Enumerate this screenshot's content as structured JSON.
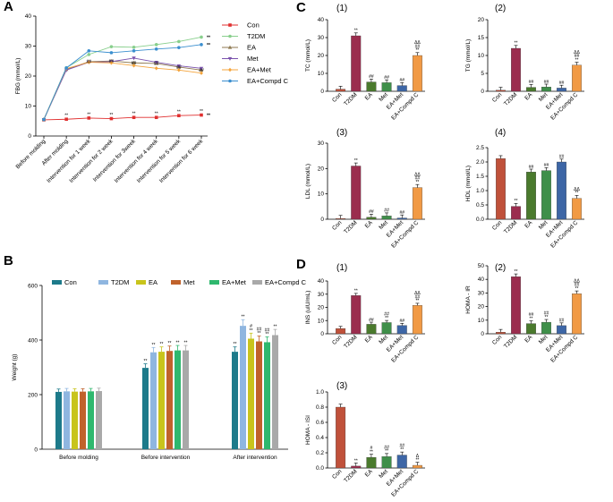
{
  "colors": {
    "con": "#e02f2f",
    "t2dm": "#88cf8c",
    "ea": "#8f7a52",
    "met": "#7a52ad",
    "eamet": "#f4a43c",
    "eacompd": "#3b8fcf",
    "barB": [
      "#1d7a8a",
      "#8fb6e0",
      "#c8c41c",
      "#c0622b",
      "#2fb86e",
      "#a9a9a9"
    ],
    "barC": [
      "#c0513a",
      "#9b2d4e",
      "#4a7a2d",
      "#3f8f4a",
      "#3d66a6",
      "#f19a45"
    ]
  },
  "panels": {
    "A": {
      "letter": "A",
      "chart_data": {
        "type": "line",
        "title": "",
        "ylabel": "FBG (mmol/L)",
        "xlabel": "",
        "ylim": [
          0,
          40
        ],
        "yticks": [
          "0",
          "10",
          "20",
          "30",
          "40"
        ],
        "categories": [
          "Before molding",
          "After molding",
          "Intervention for 1 week",
          "Intervention for 2 week",
          "Intervention for 3week",
          "Intervention for 4 week",
          "Intervention for 5 week",
          "Intervention for 6 week"
        ],
        "series": [
          {
            "name": "Con",
            "key": "con",
            "marker": "square",
            "values": [
              5.4,
              5.6,
              6.0,
              5.8,
              6.2,
              6.2,
              6.8,
              7.0
            ]
          },
          {
            "name": "T2DM",
            "key": "t2dm",
            "marker": "circle",
            "values": [
              5.6,
              22.8,
              27.2,
              29.8,
              29.6,
              30.5,
              31.5,
              33.0
            ]
          },
          {
            "name": "EA",
            "key": "ea",
            "marker": "triangle",
            "values": [
              5.5,
              22.2,
              24.8,
              25.0,
              24.4,
              24.2,
              23.0,
              22.0
            ]
          },
          {
            "name": "Met",
            "key": "met",
            "marker": "tridown",
            "values": [
              5.5,
              22.0,
              24.6,
              24.8,
              26.0,
              24.6,
              23.4,
              22.6
            ]
          },
          {
            "name": "EA+Met",
            "key": "eamet",
            "marker": "diamond",
            "values": [
              5.5,
              22.5,
              24.6,
              24.4,
              23.5,
              22.6,
              22.0,
              21.0
            ]
          },
          {
            "name": "EA+Compd C",
            "key": "eacompd",
            "marker": "circle",
            "values": [
              5.5,
              22.7,
              28.4,
              27.8,
              28.4,
              29.0,
              29.5,
              30.5
            ]
          }
        ],
        "con_annotations": [
          "**",
          "**",
          "**",
          "**",
          "**",
          "**",
          "**"
        ],
        "group_annotations": [
          "##",
          "##",
          "##",
          "##",
          "##",
          "##"
        ],
        "end_annotation": "**"
      }
    },
    "B": {
      "letter": "B",
      "chart_data": {
        "type": "bar",
        "ylabel": "Weight (g)",
        "ylim": [
          0,
          600
        ],
        "yticks": [
          "0",
          "200",
          "400",
          "600"
        ],
        "categories": [
          "Before molding",
          "Before intervention",
          "After intervention"
        ],
        "legend": [
          "Con",
          "T2DM",
          "EA",
          "Met",
          "EA+Met",
          "EA+Compd C"
        ],
        "series": [
          {
            "name": "Con",
            "values": [
              210,
              298,
              357
            ]
          },
          {
            "name": "T2DM",
            "values": [
              212,
              355,
              452
            ]
          },
          {
            "name": "EA",
            "values": [
              211,
              357,
              405
            ]
          },
          {
            "name": "Met",
            "values": [
              211,
              360,
              395
            ]
          },
          {
            "name": "EA+Met",
            "values": [
              212,
              362,
              392
            ]
          },
          {
            "name": "EA+Compd C",
            "values": [
              213,
              362,
              418
            ]
          }
        ],
        "annotations": [
          [
            "",
            "",
            "",
            "",
            "",
            ""
          ],
          [
            "**",
            "**",
            "**",
            "**",
            "**",
            "**"
          ],
          [
            "**",
            "**",
            "#\n**",
            "##\n**",
            "##\n**",
            "**"
          ]
        ]
      }
    },
    "C": {
      "letter": "C",
      "charts": [
        {
          "num": "(1)",
          "type": "bar",
          "ylabel": "TC (mmol/L)",
          "ylim": [
            0,
            40
          ],
          "yticks": [
            "0",
            "10",
            "20",
            "30",
            "40"
          ],
          "categories": [
            "Con",
            "T2DM",
            "EA",
            "Met",
            "EA+Met",
            "EA+Compd C"
          ],
          "values": [
            1.2,
            31,
            5.2,
            4.8,
            3.2,
            20
          ],
          "annotations": [
            "",
            "**",
            "##",
            "##",
            "##",
            "ΔΔ\n##\n**"
          ]
        },
        {
          "num": "(2)",
          "type": "bar",
          "ylabel": "TG (mmol/L)",
          "ylim": [
            0,
            20
          ],
          "yticks": [
            "0",
            "5",
            "10",
            "15",
            "20"
          ],
          "categories": [
            "Con",
            "T2DM",
            "EA",
            "Met",
            "EA+Met",
            "EA+Compd C"
          ],
          "values": [
            0.3,
            12,
            1.1,
            1.2,
            0.9,
            7.3
          ],
          "annotations": [
            "",
            "**",
            "##",
            "##",
            "##",
            "ΔΔ\n##\n**"
          ]
        },
        {
          "num": "(3)",
          "type": "bar",
          "ylabel": "LDL (mmol/L)",
          "ylim": [
            0,
            30
          ],
          "yticks": [
            "0",
            "10",
            "20",
            "30"
          ],
          "categories": [
            "Con",
            "T2DM",
            "EA",
            "Met",
            "EA+Met",
            "EA+Compd C"
          ],
          "values": [
            0.3,
            21,
            0.8,
            1.3,
            0.5,
            12.5
          ],
          "annotations": [
            "",
            "**",
            "##",
            "##",
            "##",
            "ΔΔ\n##\n**"
          ]
        },
        {
          "num": "(4)",
          "type": "bar",
          "ylabel": "HDL (mmol/L)",
          "ylim": [
            0,
            2.5
          ],
          "yticks": [
            "0.0",
            "0.5",
            "1.0",
            "1.5",
            "2.0",
            "2.5"
          ],
          "categories": [
            "Con",
            "T2DM",
            "EA",
            "Met",
            "EA+Met",
            "EA+Compd C"
          ],
          "values": [
            2.12,
            0.45,
            1.65,
            1.7,
            2.0,
            0.73
          ],
          "annotations": [
            "",
            "**",
            "##",
            "##",
            "##",
            "ΔΔ\n**"
          ]
        }
      ]
    },
    "D": {
      "letter": "D",
      "charts": [
        {
          "num": "(1)",
          "type": "bar",
          "ylabel": "INS (uIU/mL)",
          "ylim": [
            0,
            40
          ],
          "yticks": [
            "0",
            "10",
            "20",
            "30",
            "40"
          ],
          "categories": [
            "Con",
            "T2DM",
            "EA",
            "Met",
            "EA+Met",
            "EA+Compd C"
          ],
          "values": [
            4,
            29,
            7.2,
            8.5,
            6.3,
            21.5
          ],
          "annotations": [
            "",
            "**",
            "##",
            "##\n**",
            "##",
            "ΔΔ\n##\n**"
          ]
        },
        {
          "num": "(2)",
          "type": "bar",
          "ylabel": "HOMA - IR",
          "ylim": [
            0,
            50
          ],
          "yticks": [
            "0",
            "10",
            "20",
            "30",
            "40",
            "50"
          ],
          "categories": [
            "Con",
            "T2DM",
            "EA",
            "Met",
            "EA+Met",
            "EA+Compd C"
          ],
          "values": [
            1.2,
            42,
            7.5,
            8.5,
            6.0,
            29.5
          ],
          "annotations": [
            "",
            "**",
            "##\n**",
            "##\n**",
            "##",
            "ΔΔ\n##\n**"
          ]
        },
        {
          "num": "(3)",
          "type": "bar",
          "ylabel": "HOMA - ISI",
          "ylim": [
            0,
            1.0
          ],
          "yticks": [
            "0.0",
            "0.2",
            "0.4",
            "0.6",
            "0.8",
            "1.0"
          ],
          "categories": [
            "Con",
            "T2DM",
            "EA",
            "Met",
            "EA+Met",
            "EA+Compd C"
          ],
          "values": [
            0.8,
            0.025,
            0.14,
            0.15,
            0.17,
            0.035
          ],
          "annotations": [
            "",
            "**",
            "#\n**",
            "##\n**",
            "##\n**",
            "Δ\n**"
          ]
        }
      ]
    }
  }
}
